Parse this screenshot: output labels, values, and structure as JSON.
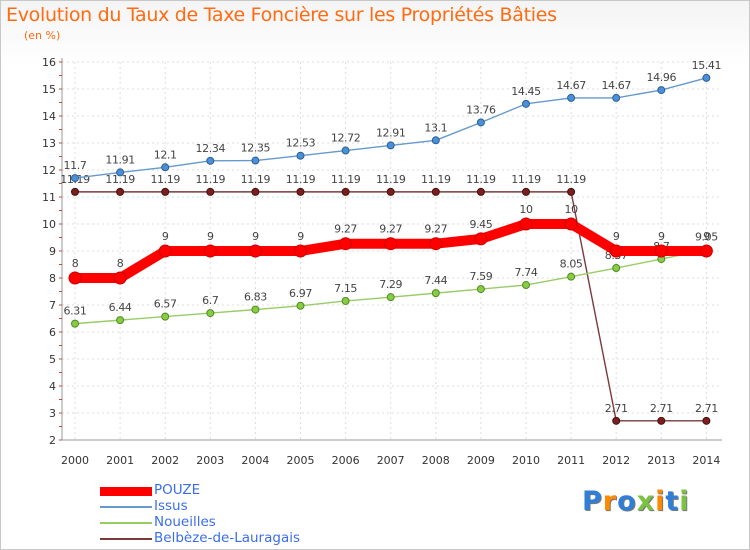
{
  "title": "Evolution du Taux de Taxe Foncière sur les Propriétés Bâties",
  "subtitle": "(en %)",
  "logo": {
    "letters": [
      "P",
      "r",
      "o",
      "x",
      "i",
      "t",
      "i"
    ],
    "colors": [
      "#2f7fd8",
      "#ff8a00",
      "#2f7fd8",
      "#7bc142",
      "#ff8a00",
      "#2f7fd8",
      "#7bc142"
    ]
  },
  "chart_data": {
    "type": "line",
    "title": "Evolution du Taux de Taxe Foncière sur les Propriétés Bâties",
    "ylabel": "(en %)",
    "x": [
      2000,
      2001,
      2002,
      2003,
      2004,
      2005,
      2006,
      2007,
      2008,
      2009,
      2010,
      2011,
      2012,
      2013,
      2014
    ],
    "x_tick_labels": [
      "2000",
      "2001",
      "2002",
      "2003",
      "2004",
      "2005",
      "2006",
      "2007",
      "2008",
      "2009",
      "2010",
      "2011",
      "2012",
      "2013",
      "2014"
    ],
    "ylim": [
      2,
      16
    ],
    "y_ticks": [
      2,
      3,
      4,
      5,
      6,
      7,
      8,
      9,
      10,
      11,
      12,
      13,
      14,
      15,
      16
    ],
    "y_tick_labels": [
      "2",
      "3",
      "4",
      "5",
      "6",
      "7",
      "8",
      "9",
      "10",
      "11",
      "12",
      "13",
      "14",
      "15",
      "16"
    ],
    "grid": true,
    "legend_position": "bottom-left",
    "series": [
      {
        "name": "POUZE",
        "color": "#ff0000",
        "values": [
          8,
          8,
          9,
          9,
          9,
          9,
          9.27,
          9.27,
          9.27,
          9.45,
          10,
          10,
          9,
          9,
          9
        ],
        "labels": [
          "8",
          "8",
          "9",
          "9",
          "9",
          "9",
          "9.27",
          "9.27",
          "9.27",
          "9.45",
          "10",
          "10",
          "9",
          "9",
          "9"
        ]
      },
      {
        "name": "Issus",
        "color": "#6699cc",
        "values": [
          11.7,
          11.91,
          12.1,
          12.34,
          12.35,
          12.53,
          12.72,
          12.91,
          13.1,
          13.76,
          14.45,
          14.67,
          14.67,
          14.96,
          15.41
        ],
        "labels": [
          "11.7",
          "11.91",
          "12.1",
          "12.34",
          "12.35",
          "12.53",
          "12.72",
          "12.91",
          "13.1",
          "13.76",
          "14.45",
          "14.67",
          "14.67",
          "14.96",
          "15.41"
        ]
      },
      {
        "name": "Noueilles",
        "color": "#99cc66",
        "values": [
          6.31,
          6.44,
          6.57,
          6.7,
          6.83,
          6.97,
          7.15,
          7.29,
          7.44,
          7.59,
          7.74,
          8.05,
          8.37,
          8.7,
          9.05
        ],
        "labels": [
          "6.31",
          "6.44",
          "6.57",
          "6.7",
          "6.83",
          "6.97",
          "7.15",
          "7.29",
          "7.44",
          "7.59",
          "7.74",
          "8.05",
          "8.37",
          "8.7",
          "9.05"
        ]
      },
      {
        "name": "Belbèze-de-Lauragais",
        "color": "#7a3b3b",
        "values": [
          11.19,
          11.19,
          11.19,
          11.19,
          11.19,
          11.19,
          11.19,
          11.19,
          11.19,
          11.19,
          11.19,
          11.19,
          2.71,
          2.71,
          2.71
        ],
        "labels": [
          "11.19",
          "11.19",
          "11.19",
          "11.19",
          "11.19",
          "11.19",
          "11.19",
          "11.19",
          "11.19",
          "11.19",
          "11.19",
          "11.19",
          "2.71",
          "2.71",
          "2.71"
        ]
      }
    ]
  }
}
